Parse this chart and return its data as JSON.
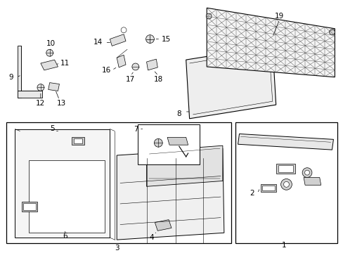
{
  "bg_color": "#ffffff",
  "line_color": "#000000",
  "label_color": "#000000",
  "label_fs": 7.5,
  "lw": 0.7
}
